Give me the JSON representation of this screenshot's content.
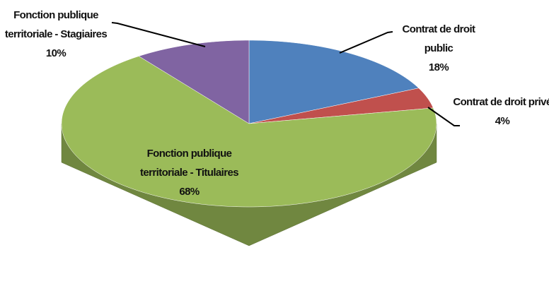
{
  "chart_data": {
    "type": "pie3d",
    "categories": [
      "Contrat de droit public",
      "Contrat de droit privé",
      "Fonction publique territoriale - Titulaires",
      "Fonction publique territoriale - Stagiaires"
    ],
    "values": [
      18,
      4,
      68,
      10
    ],
    "value_labels": [
      "18%",
      "4%",
      "68%",
      "10%"
    ],
    "colors": [
      "#4f81bd",
      "#c0504d",
      "#9bbb59",
      "#8064a2"
    ]
  }
}
